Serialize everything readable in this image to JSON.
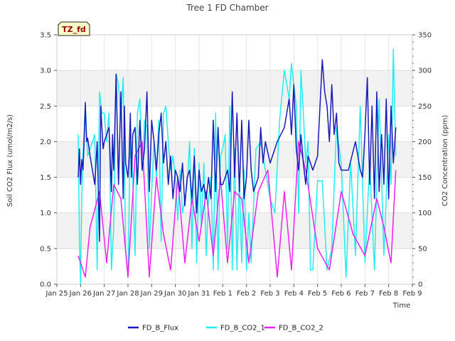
{
  "chart_data": {
    "type": "line",
    "title": "Tree 1 FD Chamber",
    "xlabel": "Time",
    "ylabel_left": "Soil CO2 Flux (umol/m2/s)",
    "ylabel_right": "CO2 Concentration (ppm)",
    "badge": "TZ_fd",
    "xlim": [
      0,
      15
    ],
    "ylim_left": [
      0,
      3.5
    ],
    "ylim_right": [
      0,
      350
    ],
    "x_ticks": [
      "Jan 25",
      "Jan 26",
      "Jan 27",
      "Jan 28",
      "Jan 29",
      "Jan 30",
      "Jan 31",
      "Feb 1",
      "Feb 2",
      "Feb 3",
      "Feb 4",
      "Feb 5",
      "Feb 6",
      "Feb 7",
      "Feb 8",
      "Feb 9"
    ],
    "y_ticks_left": [
      "0.0",
      "0.5",
      "1.0",
      "1.5",
      "2.0",
      "2.5",
      "3.0",
      "3.5"
    ],
    "y_ticks_right": [
      "0",
      "50",
      "100",
      "150",
      "200",
      "250",
      "300",
      "350"
    ],
    "bands_left": [
      [
        0.5,
        1.0
      ],
      [
        1.5,
        2.0
      ],
      [
        2.5,
        3.0
      ]
    ],
    "colors": {
      "FD_B_Flux": "#1a1ab8",
      "FD_B_CO2_1": "#22eef2",
      "FD_B_CO2_2": "#ee22ee",
      "band": "#f2f2f2",
      "badge_fill": "#ffffcc"
    },
    "series": [
      {
        "name": "FD_B_Flux",
        "axis": "left",
        "x": [
          0.9,
          0.95,
          1.0,
          1.05,
          1.1,
          1.15,
          1.2,
          1.25,
          1.3,
          1.4,
          1.5,
          1.6,
          1.7,
          1.8,
          1.85,
          1.9,
          1.95,
          2.0,
          2.1,
          2.2,
          2.3,
          2.35,
          2.4,
          2.5,
          2.6,
          2.7,
          2.8,
          2.85,
          2.9,
          3.0,
          3.05,
          3.1,
          3.15,
          3.2,
          3.3,
          3.4,
          3.5,
          3.6,
          3.7,
          3.8,
          3.9,
          4.0,
          4.1,
          4.2,
          4.3,
          4.4,
          4.5,
          4.6,
          4.7,
          4.8,
          4.9,
          5.0,
          5.1,
          5.2,
          5.3,
          5.4,
          5.5,
          5.6,
          5.7,
          5.8,
          5.9,
          6.0,
          6.1,
          6.2,
          6.3,
          6.4,
          6.5,
          6.6,
          6.7,
          6.8,
          6.9,
          7.0,
          7.1,
          7.2,
          7.3,
          7.4,
          7.5,
          7.6,
          7.7,
          7.8,
          7.9,
          8.0,
          8.1,
          8.2,
          8.3,
          8.4,
          8.5,
          8.6,
          8.7,
          8.8,
          9.0,
          9.3,
          9.6,
          9.8,
          9.9,
          10.0,
          10.1,
          10.2,
          10.3,
          10.4,
          10.5,
          10.6,
          10.8,
          11.0,
          11.2,
          11.3,
          11.4,
          11.5,
          11.6,
          11.7,
          11.8,
          11.9,
          12.0,
          12.3,
          12.6,
          12.8,
          12.9,
          13.0,
          13.1,
          13.2,
          13.3,
          13.4,
          13.5,
          13.6,
          13.7,
          13.8,
          13.9,
          14.0,
          14.1,
          14.2,
          14.3
        ],
        "y": [
          1.5,
          1.9,
          1.4,
          1.75,
          1.6,
          2.0,
          2.55,
          2.0,
          2.05,
          1.8,
          1.6,
          1.4,
          2.0,
          0.6,
          2.5,
          2.2,
          1.9,
          2.0,
          2.1,
          2.2,
          1.3,
          2.1,
          1.6,
          2.95,
          1.4,
          2.7,
          1.2,
          2.5,
          1.7,
          1.5,
          1.8,
          2.4,
          1.5,
          2.1,
          2.2,
          1.4,
          2.3,
          1.6,
          1.9,
          2.7,
          1.3,
          2.3,
          2.0,
          1.6,
          2.1,
          2.4,
          1.7,
          2.0,
          1.4,
          1.8,
          1.2,
          1.6,
          1.5,
          1.3,
          1.7,
          1.1,
          1.5,
          1.6,
          1.2,
          1.8,
          1.0,
          1.6,
          1.3,
          1.4,
          1.2,
          1.5,
          1.2,
          2.3,
          1.3,
          2.2,
          1.4,
          1.4,
          1.5,
          1.6,
          1.3,
          2.7,
          1.5,
          2.4,
          1.3,
          2.3,
          1.2,
          1.5,
          2.3,
          1.6,
          1.3,
          1.4,
          1.5,
          2.2,
          1.7,
          2.0,
          1.7,
          2.0,
          2.2,
          2.6,
          2.1,
          2.8,
          1.9,
          1.6,
          2.1,
          1.7,
          1.4,
          1.8,
          1.6,
          1.8,
          3.15,
          2.7,
          2.5,
          2.0,
          2.8,
          2.1,
          2.4,
          1.7,
          1.6,
          1.6,
          2.0,
          1.6,
          1.5,
          2.1,
          2.9,
          1.4,
          2.5,
          1.2,
          2.7,
          1.3,
          2.1,
          1.4,
          2.6,
          1.2,
          2.5,
          1.7,
          2.2
        ]
      },
      {
        "name": "FD_B_CO2_1",
        "axis": "right",
        "x": [
          0.9,
          0.95,
          1.0,
          1.05,
          1.1,
          1.2,
          1.3,
          1.5,
          1.6,
          1.7,
          1.8,
          1.9,
          2.0,
          2.1,
          2.2,
          2.3,
          2.4,
          2.5,
          2.6,
          2.7,
          2.8,
          2.9,
          3.0,
          3.1,
          3.2,
          3.3,
          3.4,
          3.5,
          3.6,
          3.7,
          3.8,
          3.9,
          4.0,
          4.1,
          4.2,
          4.3,
          4.4,
          4.5,
          4.6,
          4.7,
          4.8,
          4.9,
          5.0,
          5.1,
          5.2,
          5.3,
          5.4,
          5.5,
          5.6,
          5.7,
          5.8,
          5.9,
          6.0,
          6.1,
          6.2,
          6.3,
          6.4,
          6.5,
          6.6,
          6.7,
          6.8,
          6.9,
          7.0,
          7.1,
          7.2,
          7.3,
          7.4,
          7.5,
          7.6,
          7.7,
          7.8,
          7.9,
          8.0,
          8.1,
          8.2,
          8.4,
          8.6,
          8.8,
          9.0,
          9.2,
          9.4,
          9.6,
          9.8,
          9.9,
          10.0,
          10.1,
          10.2,
          10.3,
          10.4,
          10.5,
          10.6,
          10.7,
          10.8,
          11.0,
          11.2,
          11.4,
          11.6,
          11.8,
          12.0,
          12.2,
          12.4,
          12.6,
          12.8,
          13.0,
          13.2,
          13.4,
          13.6,
          13.8,
          14.0,
          14.1,
          14.2,
          14.3
        ],
        "y": [
          210,
          60,
          0,
          120,
          180,
          250,
          180,
          200,
          210,
          20,
          270,
          240,
          240,
          200,
          240,
          20,
          80,
          295,
          280,
          230,
          290,
          50,
          10,
          200,
          150,
          40,
          240,
          260,
          160,
          230,
          220,
          50,
          130,
          200,
          150,
          230,
          60,
          240,
          250,
          200,
          160,
          180,
          150,
          90,
          160,
          100,
          120,
          140,
          200,
          50,
          190,
          30,
          170,
          80,
          170,
          40,
          120,
          150,
          20,
          240,
          20,
          180,
          190,
          210,
          50,
          250,
          20,
          190,
          20,
          150,
          30,
          160,
          20,
          100,
          30,
          190,
          200,
          160,
          120,
          100,
          230,
          300,
          260,
          310,
          280,
          250,
          100,
          300,
          240,
          170,
          200,
          20,
          20,
          145,
          145,
          20,
          50,
          220,
          170,
          10,
          170,
          40,
          250,
          30,
          170,
          20,
          260,
          40,
          210,
          140,
          330,
          180
        ]
      },
      {
        "name": "FD_B_CO2_2",
        "axis": "right",
        "x": [
          0.9,
          1.2,
          1.4,
          1.8,
          2.1,
          2.4,
          2.7,
          3.0,
          3.3,
          3.6,
          3.9,
          4.2,
          4.5,
          4.8,
          5.1,
          5.4,
          5.7,
          6.0,
          6.3,
          6.6,
          6.9,
          7.2,
          7.5,
          7.8,
          8.1,
          8.5,
          8.9,
          9.3,
          9.6,
          9.9,
          10.2,
          10.5,
          11.0,
          11.5,
          12.0,
          12.5,
          13.0,
          13.5,
          13.8,
          14.1,
          14.3
        ],
        "y": [
          40,
          10,
          80,
          130,
          30,
          140,
          120,
          10,
          180,
          200,
          10,
          150,
          70,
          20,
          150,
          30,
          120,
          60,
          130,
          40,
          150,
          30,
          130,
          120,
          30,
          130,
          160,
          10,
          130,
          20,
          200,
          160,
          50,
          20,
          130,
          70,
          40,
          120,
          80,
          30,
          160
        ]
      }
    ]
  }
}
